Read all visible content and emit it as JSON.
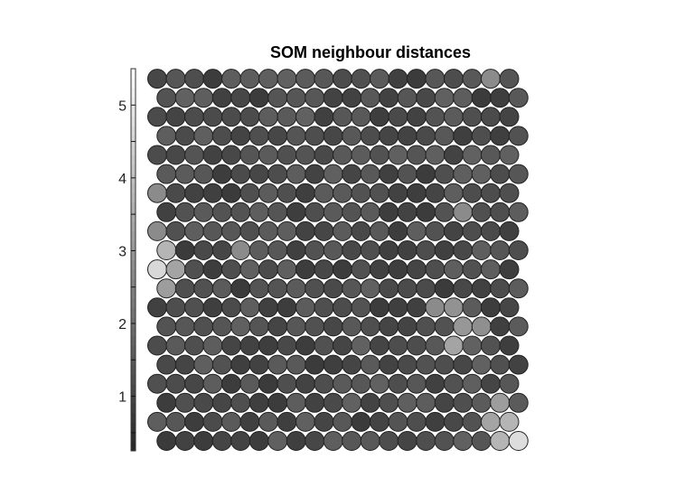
{
  "chart_data": {
    "type": "heatmap",
    "subtype": "hexagonal SOM neighbour distance map (U-matrix)",
    "title": "SOM neighbour distances",
    "colormap": "grayscale (dark = small distance, light = large distance)",
    "colorbar": {
      "position": "left",
      "range": [
        0.25,
        5.5
      ],
      "tick_labels": [
        "1",
        "2",
        "3",
        "4",
        "5"
      ]
    },
    "grid": {
      "rows": 20,
      "cols": 20,
      "topology": "hexagonal"
    },
    "neuron_border_color": "#222222",
    "light_cells": [
      {
        "row": 0,
        "col": 19,
        "level": 0.95
      },
      {
        "row": 0,
        "col": 18,
        "level": 0.72
      },
      {
        "row": 1,
        "col": 19,
        "level": 0.72
      },
      {
        "row": 1,
        "col": 18,
        "level": 0.62
      },
      {
        "row": 2,
        "col": 18,
        "level": 0.58
      },
      {
        "row": 5,
        "col": 16,
        "level": 0.62
      },
      {
        "row": 6,
        "col": 16,
        "level": 0.55
      },
      {
        "row": 6,
        "col": 17,
        "level": 0.5
      },
      {
        "row": 7,
        "col": 16,
        "level": 0.52
      },
      {
        "row": 7,
        "col": 15,
        "level": 0.48
      },
      {
        "row": 8,
        "col": 0,
        "level": 0.58
      },
      {
        "row": 9,
        "col": 0,
        "level": 0.92
      },
      {
        "row": 9,
        "col": 1,
        "level": 0.62
      },
      {
        "row": 10,
        "col": 0,
        "level": 0.72
      },
      {
        "row": 10,
        "col": 4,
        "level": 0.48
      },
      {
        "row": 11,
        "col": 0,
        "level": 0.48
      },
      {
        "row": 12,
        "col": 16,
        "level": 0.48
      },
      {
        "row": 13,
        "col": 0,
        "level": 0.48
      },
      {
        "row": 19,
        "col": 18,
        "level": 0.48
      }
    ]
  }
}
